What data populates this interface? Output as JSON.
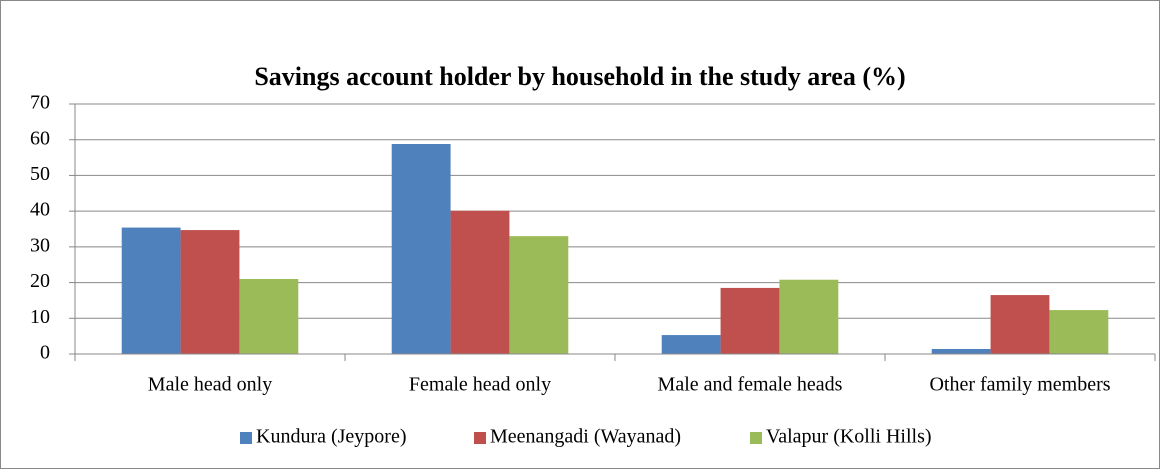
{
  "chart_data": {
    "type": "bar",
    "title": "Savings account holder by household in the study area (%)",
    "categories": [
      "Male head only",
      "Female head only",
      "Male and female heads",
      "Other family members"
    ],
    "series": [
      {
        "name": "Kundura (Jeypore)",
        "color": "#4f81bd",
        "values": [
          35.4,
          58.8,
          5.3,
          1.4
        ]
      },
      {
        "name": "Meenangadi (Wayanad)",
        "color": "#c0504d",
        "values": [
          34.7,
          40.1,
          18.5,
          16.5
        ]
      },
      {
        "name": "Valapur (Kolli Hills)",
        "color": "#9bbb59",
        "values": [
          21,
          33,
          20.8,
          12.3
        ]
      }
    ],
    "ylim": [
      0,
      70
    ],
    "yticks": [
      0,
      10,
      20,
      30,
      40,
      50,
      60,
      70
    ],
    "grid": true,
    "legend": "bottom"
  }
}
